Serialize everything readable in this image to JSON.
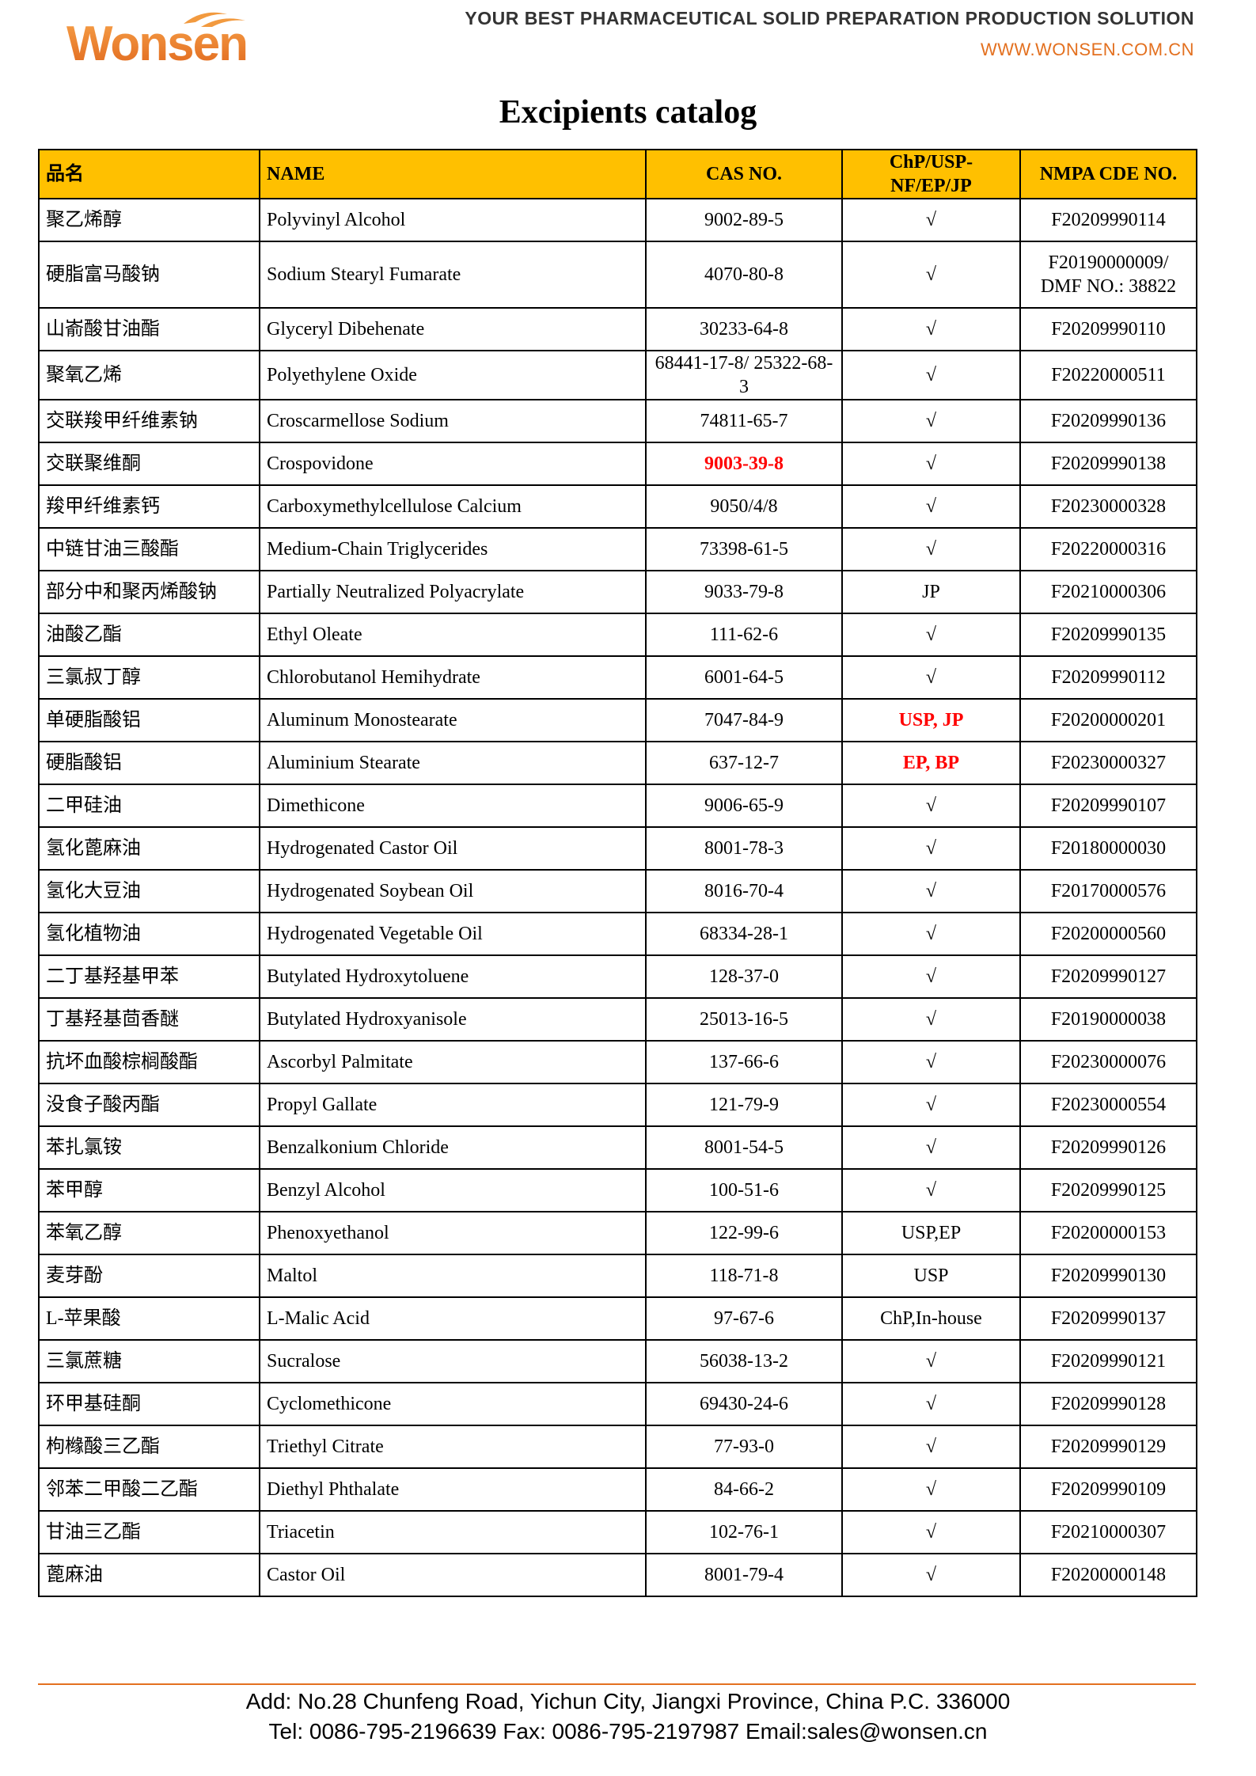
{
  "header": {
    "logo": "Wonsen",
    "tagline": "YOUR BEST PHARMACEUTICAL SOLID PREPARATION PRODUCTION SOLUTION",
    "url": "WWW.WONSEN.COM.CN"
  },
  "title": "Excipients catalog",
  "table": {
    "headers": [
      "品名",
      "NAME",
      "CAS NO.",
      "ChP/USP-NF/EP/JP",
      "NMPA CDE NO."
    ],
    "rows": [
      [
        "聚乙烯醇",
        "Polyvinyl Alcohol",
        "9002-89-5",
        "√",
        "F20209990114"
      ],
      [
        "硬脂富马酸钠",
        "Sodium Stearyl Fumarate",
        "4070-80-8",
        "√",
        "F20190000009/ DMF NO.: 38822"
      ],
      [
        "山嵛酸甘油酯",
        "Glyceryl Dibehenate",
        "30233-64-8",
        "√",
        "F20209990110"
      ],
      [
        "聚氧乙烯",
        "Polyethylene Oxide",
        "68441-17-8/ 25322-68-3",
        "√",
        "F20220000511"
      ],
      [
        "交联羧甲纤维素钠",
        "Croscarmellose Sodium",
        "74811-65-7",
        "√",
        "F20209990136"
      ],
      [
        "交联聚维酮",
        "Crospovidone",
        {
          "text": "9003-39-8",
          "color": "red"
        },
        "√",
        "F20209990138"
      ],
      [
        "羧甲纤维素钙",
        "Carboxymethylcellulose Calcium",
        "9050/4/8",
        "√",
        "F20230000328"
      ],
      [
        "中链甘油三酸酯",
        "Medium-Chain Triglycerides",
        "73398-61-5",
        "√",
        "F20220000316"
      ],
      [
        "部分中和聚丙烯酸钠",
        "Partially Neutralized Polyacrylate",
        "9033-79-8",
        "JP",
        "F20210000306"
      ],
      [
        "油酸乙酯",
        "Ethyl Oleate",
        "111-62-6",
        "√",
        "F20209990135"
      ],
      [
        "三氯叔丁醇",
        "Chlorobutanol Hemihydrate",
        "6001-64-5",
        "√",
        "F20209990112"
      ],
      [
        "单硬脂酸铝",
        "Aluminum Monostearate",
        "7047-84-9",
        {
          "text": "USP, JP",
          "color": "red"
        },
        "F20200000201"
      ],
      [
        "硬脂酸铝",
        "Aluminium Stearate",
        "637-12-7",
        {
          "text": "EP, BP",
          "color": "red"
        },
        "F20230000327"
      ],
      [
        "二甲硅油",
        "Dimethicone",
        "9006-65-9",
        "√",
        "F20209990107"
      ],
      [
        "氢化蓖麻油",
        "Hydrogenated Castor Oil",
        "8001-78-3",
        "√",
        "F20180000030"
      ],
      [
        "氢化大豆油",
        "Hydrogenated  Soybean Oil",
        "8016-70-4",
        "√",
        "F20170000576"
      ],
      [
        "氢化植物油",
        "Hydrogenated Vegetable Oil",
        "68334-28-1",
        "√",
        "F20200000560"
      ],
      [
        "二丁基羟基甲苯",
        "Butylated Hydroxytoluene",
        "128-37-0",
        "√",
        "F20209990127"
      ],
      [
        "丁基羟基茴香醚",
        "Butylated Hydroxyanisole",
        "25013-16-5",
        "√",
        "F20190000038"
      ],
      [
        "抗坏血酸棕榈酸酯",
        "Ascorbyl Palmitate",
        "137-66-6",
        "√",
        "F20230000076"
      ],
      [
        "没食子酸丙酯",
        "Propyl Gallate",
        "121-79-9",
        "√",
        "F20230000554"
      ],
      [
        "苯扎氯铵",
        "Benzalkonium Chloride",
        "8001-54-5",
        "√",
        "F20209990126"
      ],
      [
        "苯甲醇",
        "Benzyl Alcohol",
        "100-51-6",
        "√",
        "F20209990125"
      ],
      [
        "苯氧乙醇",
        "Phenoxyethanol",
        "122-99-6",
        "USP,EP",
        "F20200000153"
      ],
      [
        "麦芽酚",
        "Maltol",
        "118-71-8",
        "USP",
        "F20209990130"
      ],
      [
        "L-苹果酸",
        "L-Malic Acid",
        "97-67-6",
        "ChP,In-house",
        "F20209990137"
      ],
      [
        "三氯蔗糖",
        "Sucralose",
        "56038-13-2",
        "√",
        "F20209990121"
      ],
      [
        "环甲基硅酮",
        "Cyclomethicone",
        "69430-24-6",
        "√",
        "F20209990128"
      ],
      [
        "枸橼酸三乙酯",
        "Triethyl Citrate",
        "77-93-0",
        "√",
        "F20209990129"
      ],
      [
        "邻苯二甲酸二乙酯",
        "Diethyl Phthalate",
        "84-66-2",
        "√",
        "F20209990109"
      ],
      [
        "甘油三乙酯",
        "Triacetin",
        "102-76-1",
        "√",
        "F20210000307"
      ],
      [
        "蓖麻油",
        "Castor Oil",
        "8001-79-4",
        "√",
        "F20200000148"
      ]
    ]
  },
  "footer": {
    "address": "Add: No.28 Chunfeng Road, Yichun City, Jiangxi Province, China P.C. 336000",
    "contact": "Tel: 0086-795-2196639 Fax: 0086-795-2197987 Email:sales@wonsen.cn"
  }
}
